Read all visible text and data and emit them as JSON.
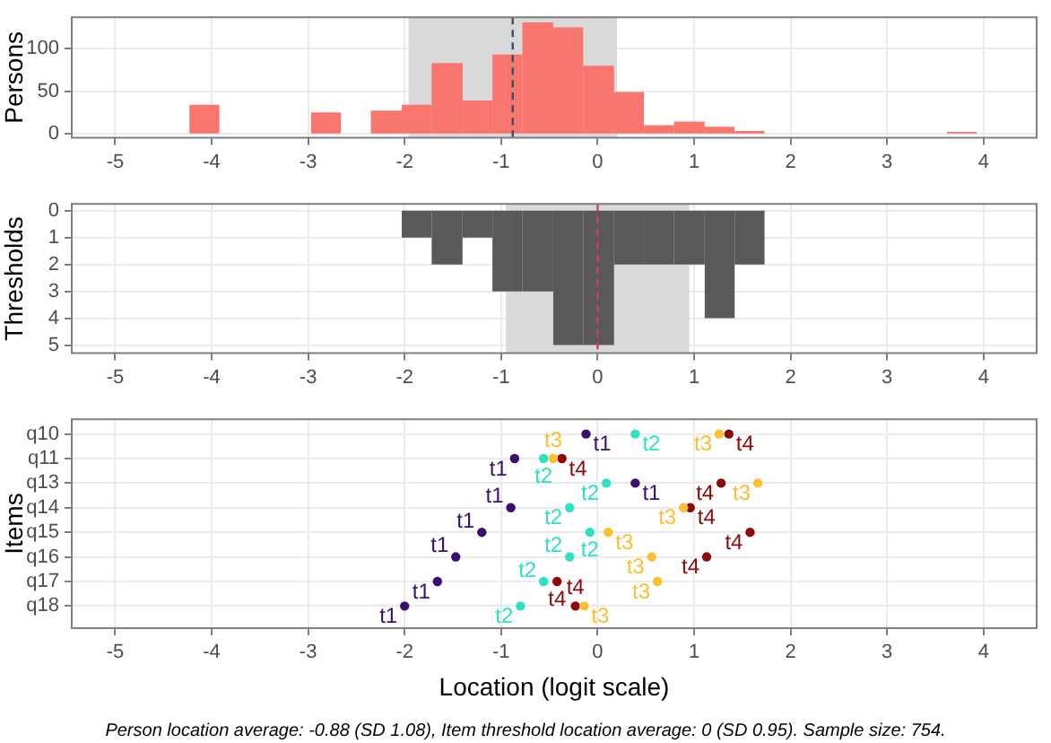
{
  "chart_data": [
    {
      "type": "histogram",
      "ylabel": "Persons",
      "bins": [
        -4.23,
        -3.92,
        -2.97,
        -2.66,
        -2.35,
        -2.03,
        -1.72,
        -1.4,
        -1.09,
        -0.78,
        -0.46,
        -0.15,
        0.17,
        0.48,
        0.79,
        1.11,
        1.42,
        1.73,
        3.62,
        3.93
      ],
      "series": [
        {
          "color": "#f8766d",
          "values": [
            34,
            0,
            25,
            0,
            27,
            34,
            83,
            39,
            93,
            131,
            125,
            80,
            49,
            10,
            14,
            8,
            3,
            0,
            2
          ]
        }
      ],
      "xlim": [
        -5.45,
        4.55
      ],
      "xticks": [
        -5,
        -4,
        -3,
        -2,
        -1,
        0,
        1,
        2,
        3,
        4
      ],
      "ylim": [
        -5,
        137
      ],
      "yticks": [
        0,
        50,
        100
      ],
      "grid": true,
      "bands": [
        {
          "axis": "x",
          "from": -1.96,
          "to": 0.2,
          "color": "#d9d9d9"
        }
      ],
      "ref_lines": [
        {
          "axis": "x",
          "value": -0.88,
          "color": "#34506b",
          "line_style": "dashed"
        }
      ]
    },
    {
      "type": "histogram",
      "ylabel": "Thresholds",
      "bins": [
        -2.03,
        -1.72,
        -1.4,
        -1.09,
        -0.78,
        -0.46,
        -0.15,
        0.17,
        0.48,
        0.79,
        1.11,
        1.42,
        1.73
      ],
      "series": [
        {
          "color": "#595959",
          "values": [
            1,
            2,
            1,
            3,
            3,
            5,
            5,
            2,
            2,
            2,
            4,
            2
          ]
        }
      ],
      "xlim": [
        -5.45,
        4.55
      ],
      "xticks": [
        -5,
        -4,
        -3,
        -2,
        -1,
        0,
        1,
        2,
        3,
        4
      ],
      "ylim": [
        5.3,
        -0.25
      ],
      "yticks": [
        0,
        1,
        2,
        3,
        4,
        5
      ],
      "grid": true,
      "bands": [
        {
          "axis": "x",
          "from": -0.95,
          "to": 0.95,
          "color": "#d9d9d9"
        }
      ],
      "ref_lines": [
        {
          "axis": "x",
          "value": 0,
          "color": "#d04060",
          "line_style": "dashed"
        }
      ]
    },
    {
      "type": "scatter",
      "ylabel": "Items",
      "xlabel": "Location (logit scale)",
      "orientation": "horizontal",
      "marker": "circle",
      "grid": true,
      "categories": [
        "q10",
        "q11",
        "q13",
        "q14",
        "q15",
        "q16",
        "q17",
        "q18"
      ],
      "series": [
        {
          "name": "t1",
          "color": "#3b0f70",
          "values": [
            -0.12,
            -0.86,
            0.39,
            -0.9,
            -1.2,
            -1.47,
            -1.66,
            -2.0
          ]
        },
        {
          "name": "t2",
          "color": "#2de2c0",
          "values": [
            0.39,
            -0.56,
            0.09,
            -0.29,
            -0.08,
            -0.29,
            -0.56,
            -0.8
          ]
        },
        {
          "name": "t3",
          "color": "#fbbf2f",
          "values": [
            1.26,
            -0.46,
            1.66,
            0.89,
            0.11,
            0.56,
            0.62,
            -0.14
          ]
        },
        {
          "name": "t4",
          "color": "#8b0a0a",
          "values": [
            1.36,
            -0.37,
            1.28,
            0.96,
            1.58,
            1.13,
            -0.42,
            -0.23
          ]
        }
      ],
      "xlim": [
        -5.45,
        4.55
      ],
      "xticks": [
        -5,
        -4,
        -3,
        -2,
        -1,
        0,
        1,
        2,
        3,
        4
      ],
      "annotations": [
        "Person location average: -0.88 (SD 1.08), Item threshold location average: 0 (SD 0.95). Sample size: 754."
      ]
    }
  ]
}
